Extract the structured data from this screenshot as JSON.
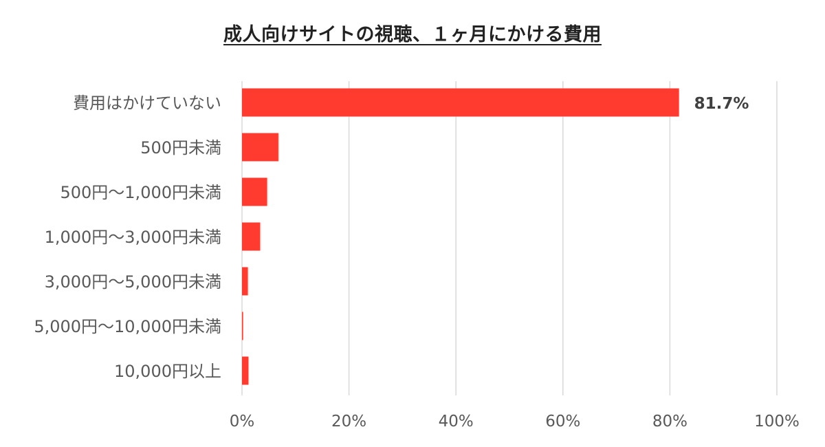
{
  "chart_data": {
    "type": "bar",
    "orientation": "horizontal",
    "title": "成人向けサイトの視聴、１ヶ月にかける費用",
    "categories": [
      "費用はかけていない",
      "500円未満",
      "500円～1,000円未満",
      "1,000円～3,000円未満",
      "3,000円～5,000円未満",
      "5,000円～10,000円未満",
      "10,000円以上"
    ],
    "values": [
      81.7,
      6.8,
      4.7,
      3.4,
      1.1,
      0.2,
      1.2
    ],
    "data_labels": [
      "81.7%",
      "",
      "",
      "",
      "",
      "",
      ""
    ],
    "xlim": [
      0,
      100
    ],
    "xticks": [
      0,
      20,
      40,
      60,
      80,
      100
    ],
    "xtick_labels": [
      "0%",
      "20%",
      "40%",
      "60%",
      "80%",
      "100%"
    ],
    "grid": "vertical",
    "legend": "none",
    "bar_color": "#ff3b30",
    "grid_color": "#d9d9d9"
  }
}
